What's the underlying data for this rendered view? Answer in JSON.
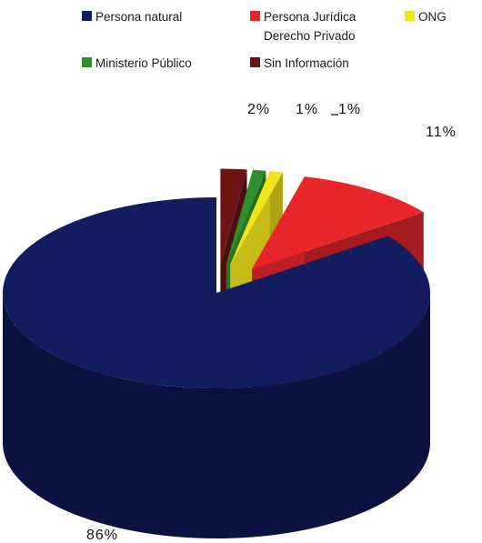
{
  "chart_data": {
    "type": "pie",
    "style": "3d-exploded",
    "title": "",
    "slices": [
      {
        "label": "Persona natural",
        "value": 86,
        "display": "86%",
        "color": "#121c5e"
      },
      {
        "label": "Persona Jurídica Derecho Privado",
        "value": 11,
        "display": "11%",
        "color": "#e8262a"
      },
      {
        "label": "ONG",
        "value": 1,
        "display": "1%",
        "color": "#f2e41c"
      },
      {
        "label": "Ministerio Público",
        "value": 1,
        "display": "1%",
        "color": "#2e8f2e"
      },
      {
        "label": "Sin Información",
        "value": 2,
        "display": "2%",
        "color": "#6e1414"
      }
    ],
    "legend": {
      "placement": "top",
      "items": [
        {
          "line1": "Persona natural",
          "line2": "",
          "color": "#121c5e"
        },
        {
          "line1": "Persona Jurídica",
          "line2": "Derecho Privado",
          "color": "#e8262a"
        },
        {
          "line1": "ONG",
          "line2": "",
          "color": "#f2e41c"
        },
        {
          "line1": "Ministerio Público",
          "line2": "",
          "color": "#2e8f2e"
        },
        {
          "line1": "Sin Información",
          "line2": "",
          "color": "#6e1414"
        }
      ]
    }
  }
}
